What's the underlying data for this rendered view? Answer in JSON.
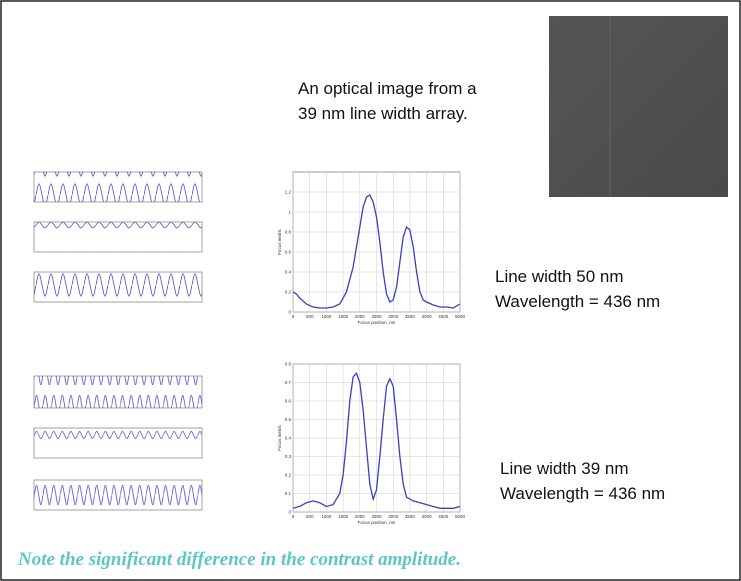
{
  "slide": {
    "caption": [
      "An optical image from a",
      "39 nm line width array."
    ],
    "case_1": [
      "Line width 50 nm",
      "Wavelength = 436 nm"
    ],
    "case_2": [
      "Line width 39 nm",
      "Wavelength = 436 nm"
    ],
    "note": "Note the significant difference in the contrast amplitude."
  },
  "chart_data": [
    {
      "type": "line",
      "xlabel": "Focus position, nm",
      "ylabel": "Focus metric",
      "xlim": [
        0,
        5000
      ],
      "xticks": [
        0,
        500,
        1000,
        1500,
        2000,
        2500,
        3000,
        3500,
        4000,
        4500,
        5000
      ],
      "ylim": [
        0,
        1.4
      ],
      "yticks": [
        0,
        0.2,
        0.4,
        0.6,
        0.8,
        1,
        1.2
      ],
      "grid": true,
      "color": "#3b3fc0",
      "x": [
        0,
        100,
        200,
        400,
        600,
        800,
        1000,
        1200,
        1400,
        1600,
        1800,
        2000,
        2100,
        2200,
        2300,
        2400,
        2500,
        2600,
        2700,
        2800,
        2900,
        3000,
        3100,
        3200,
        3300,
        3400,
        3500,
        3600,
        3700,
        3800,
        3900,
        4000,
        4200,
        4400,
        4600,
        4800,
        5000
      ],
      "values": [
        0.2,
        0.18,
        0.14,
        0.08,
        0.05,
        0.04,
        0.04,
        0.05,
        0.08,
        0.2,
        0.45,
        0.85,
        1.05,
        1.15,
        1.17,
        1.1,
        0.95,
        0.7,
        0.4,
        0.18,
        0.1,
        0.12,
        0.25,
        0.5,
        0.75,
        0.85,
        0.82,
        0.65,
        0.4,
        0.2,
        0.12,
        0.1,
        0.07,
        0.05,
        0.05,
        0.04,
        0.08
      ]
    },
    {
      "type": "line",
      "xlabel": "Focus position, nm",
      "ylabel": "Focus metric",
      "xlim": [
        0,
        5000
      ],
      "xticks": [
        0,
        500,
        1000,
        1500,
        2000,
        2500,
        3000,
        3500,
        4000,
        4500,
        5000
      ],
      "ylim": [
        0,
        0.8
      ],
      "yticks": [
        0,
        0.1,
        0.2,
        0.3,
        0.4,
        0.5,
        0.6,
        0.7,
        0.8
      ],
      "grid": true,
      "color": "#3b3fc0",
      "x": [
        0,
        200,
        400,
        600,
        800,
        1000,
        1200,
        1400,
        1500,
        1600,
        1700,
        1800,
        1900,
        2000,
        2100,
        2200,
        2300,
        2400,
        2500,
        2600,
        2700,
        2800,
        2900,
        3000,
        3100,
        3200,
        3300,
        3400,
        3600,
        3800,
        4000,
        4200,
        4400,
        4600,
        4800,
        5000
      ],
      "values": [
        0.02,
        0.03,
        0.05,
        0.06,
        0.05,
        0.03,
        0.04,
        0.1,
        0.2,
        0.38,
        0.6,
        0.73,
        0.75,
        0.7,
        0.55,
        0.35,
        0.15,
        0.07,
        0.12,
        0.3,
        0.5,
        0.68,
        0.72,
        0.68,
        0.5,
        0.3,
        0.15,
        0.08,
        0.06,
        0.05,
        0.04,
        0.03,
        0.02,
        0.02,
        0.02,
        0.03
      ]
    }
  ]
}
